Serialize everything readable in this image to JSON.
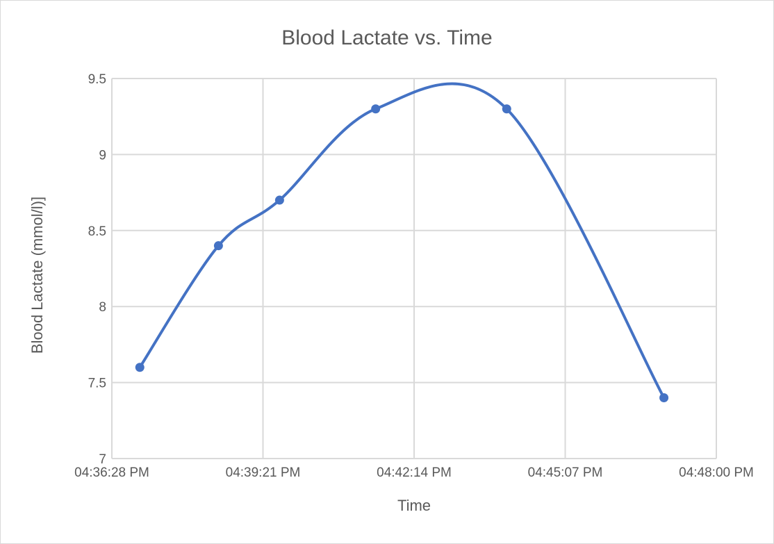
{
  "chart_data": {
    "type": "scatter",
    "title": "Blood Lactate vs. Time",
    "xlabel": "Time",
    "ylabel": "Blood Lactate (mmol/l)]",
    "xlim": [
      "04:36:28 PM",
      "04:48:00 PM"
    ],
    "ylim": [
      7,
      9.5
    ],
    "x_ticks": [
      "04:36:28 PM",
      "04:39:21 PM",
      "04:42:14 PM",
      "04:45:07 PM",
      "04:48:00 PM"
    ],
    "y_ticks": [
      "7",
      "7.5",
      "8",
      "8.5",
      "9",
      "9.5"
    ],
    "grid": true,
    "legend": "none",
    "smooth_line": true,
    "series": [
      {
        "x": [
          "04:37:00 PM",
          "04:38:30 PM",
          "04:39:40 PM",
          "04:41:30 PM",
          "04:44:00 PM",
          "04:47:00 PM"
        ],
        "values": [
          7.6,
          8.4,
          8.7,
          9.3,
          9.3,
          7.4
        ],
        "color": "#4472c4"
      }
    ]
  }
}
